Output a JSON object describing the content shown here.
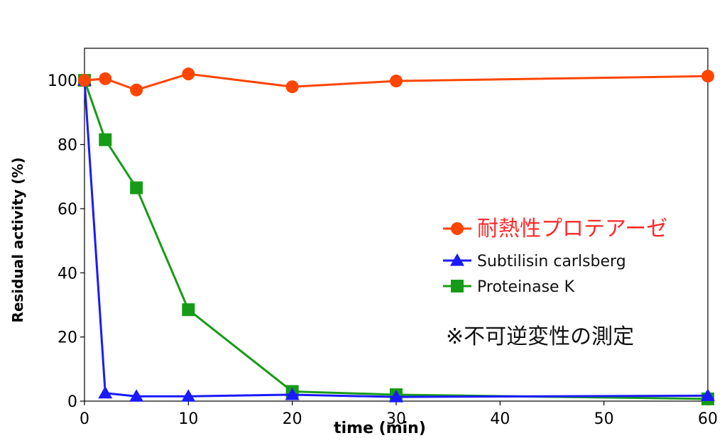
{
  "chart_data": {
    "type": "line",
    "xlabel": "time (min)",
    "ylabel": "Residual activity (%)",
    "x_ticks": [
      0,
      10,
      20,
      30,
      40,
      50,
      60
    ],
    "y_ticks": [
      0,
      20,
      40,
      60,
      80,
      100
    ],
    "xlim": [
      0,
      60
    ],
    "ylim": [
      0,
      110
    ],
    "grid": false,
    "legend_position": "right",
    "series": [
      {
        "name": "耐熱性プロテアーゼ",
        "color": "#ff4500",
        "marker": "circle",
        "x": [
          0,
          2,
          5,
          10,
          20,
          30,
          60
        ],
        "y": [
          100,
          100.5,
          97,
          102,
          98,
          99.8,
          101.3
        ]
      },
      {
        "name": "Subtilisin carlsberg",
        "color": "#1a1aff",
        "marker": "triangle",
        "x": [
          0,
          2,
          5,
          10,
          20,
          30,
          60
        ],
        "y": [
          100,
          2.5,
          1.5,
          1.5,
          2,
          1.3,
          1.7
        ]
      },
      {
        "name": "Proteinase K",
        "color": "#169b16",
        "marker": "square",
        "x": [
          0,
          2,
          5,
          10,
          20,
          30,
          60
        ],
        "y": [
          100,
          81.5,
          66.5,
          28.5,
          3,
          2,
          0.7
        ]
      }
    ],
    "annotations": [
      "※不可逆変性の測定"
    ]
  }
}
